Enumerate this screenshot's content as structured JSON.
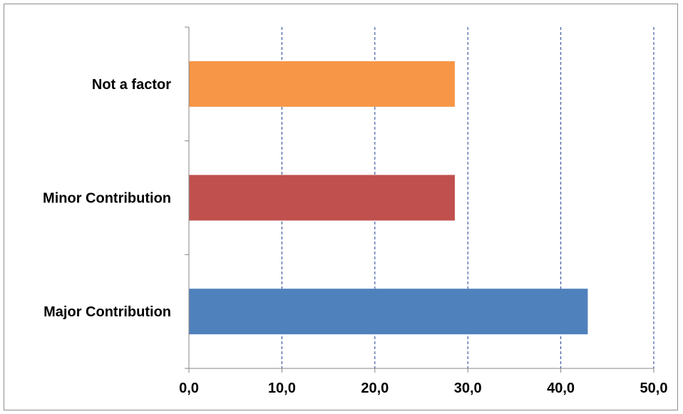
{
  "chart_data": {
    "type": "bar",
    "orientation": "horizontal",
    "categories": [
      "Major Contribution",
      "Minor Contribution",
      "Not a factor"
    ],
    "values": [
      42.9,
      28.6,
      28.6
    ],
    "colors": [
      "#4f81bd",
      "#c0504d",
      "#f79646"
    ],
    "xlim": [
      0,
      50
    ],
    "x_ticks": [
      "0,0",
      "10,0",
      "20,0",
      "30,0",
      "40,0",
      "50,0"
    ],
    "grid": "vertical dashed",
    "grid_color": "#1f3f8f",
    "title": "",
    "xlabel": "",
    "ylabel": ""
  }
}
